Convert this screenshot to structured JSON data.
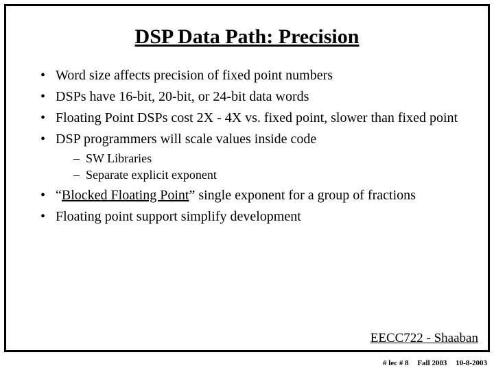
{
  "title": "DSP Data Path: Precision",
  "bullets": {
    "b0": "Word size affects precision of fixed point numbers",
    "b1": "DSPs have 16-bit, 20-bit, or 24-bit data words",
    "b2": "Floating Point DSPs cost 2X - 4X vs. fixed point, slower than fixed point",
    "b3": "DSP programmers will scale values inside code",
    "b3_sub0": "SW Libraries",
    "b3_sub1": "Separate explicit exponent",
    "b4_pre": "“",
    "b4_underlined": "Blocked Floating Point",
    "b4_post": "” single exponent for a group of fractions",
    "b5": "Floating point support simplify development"
  },
  "footer": {
    "course": "EECC722 - Shaaban",
    "lec": "#  lec # 8",
    "term": "Fall 2003",
    "date": "10-8-2003"
  }
}
